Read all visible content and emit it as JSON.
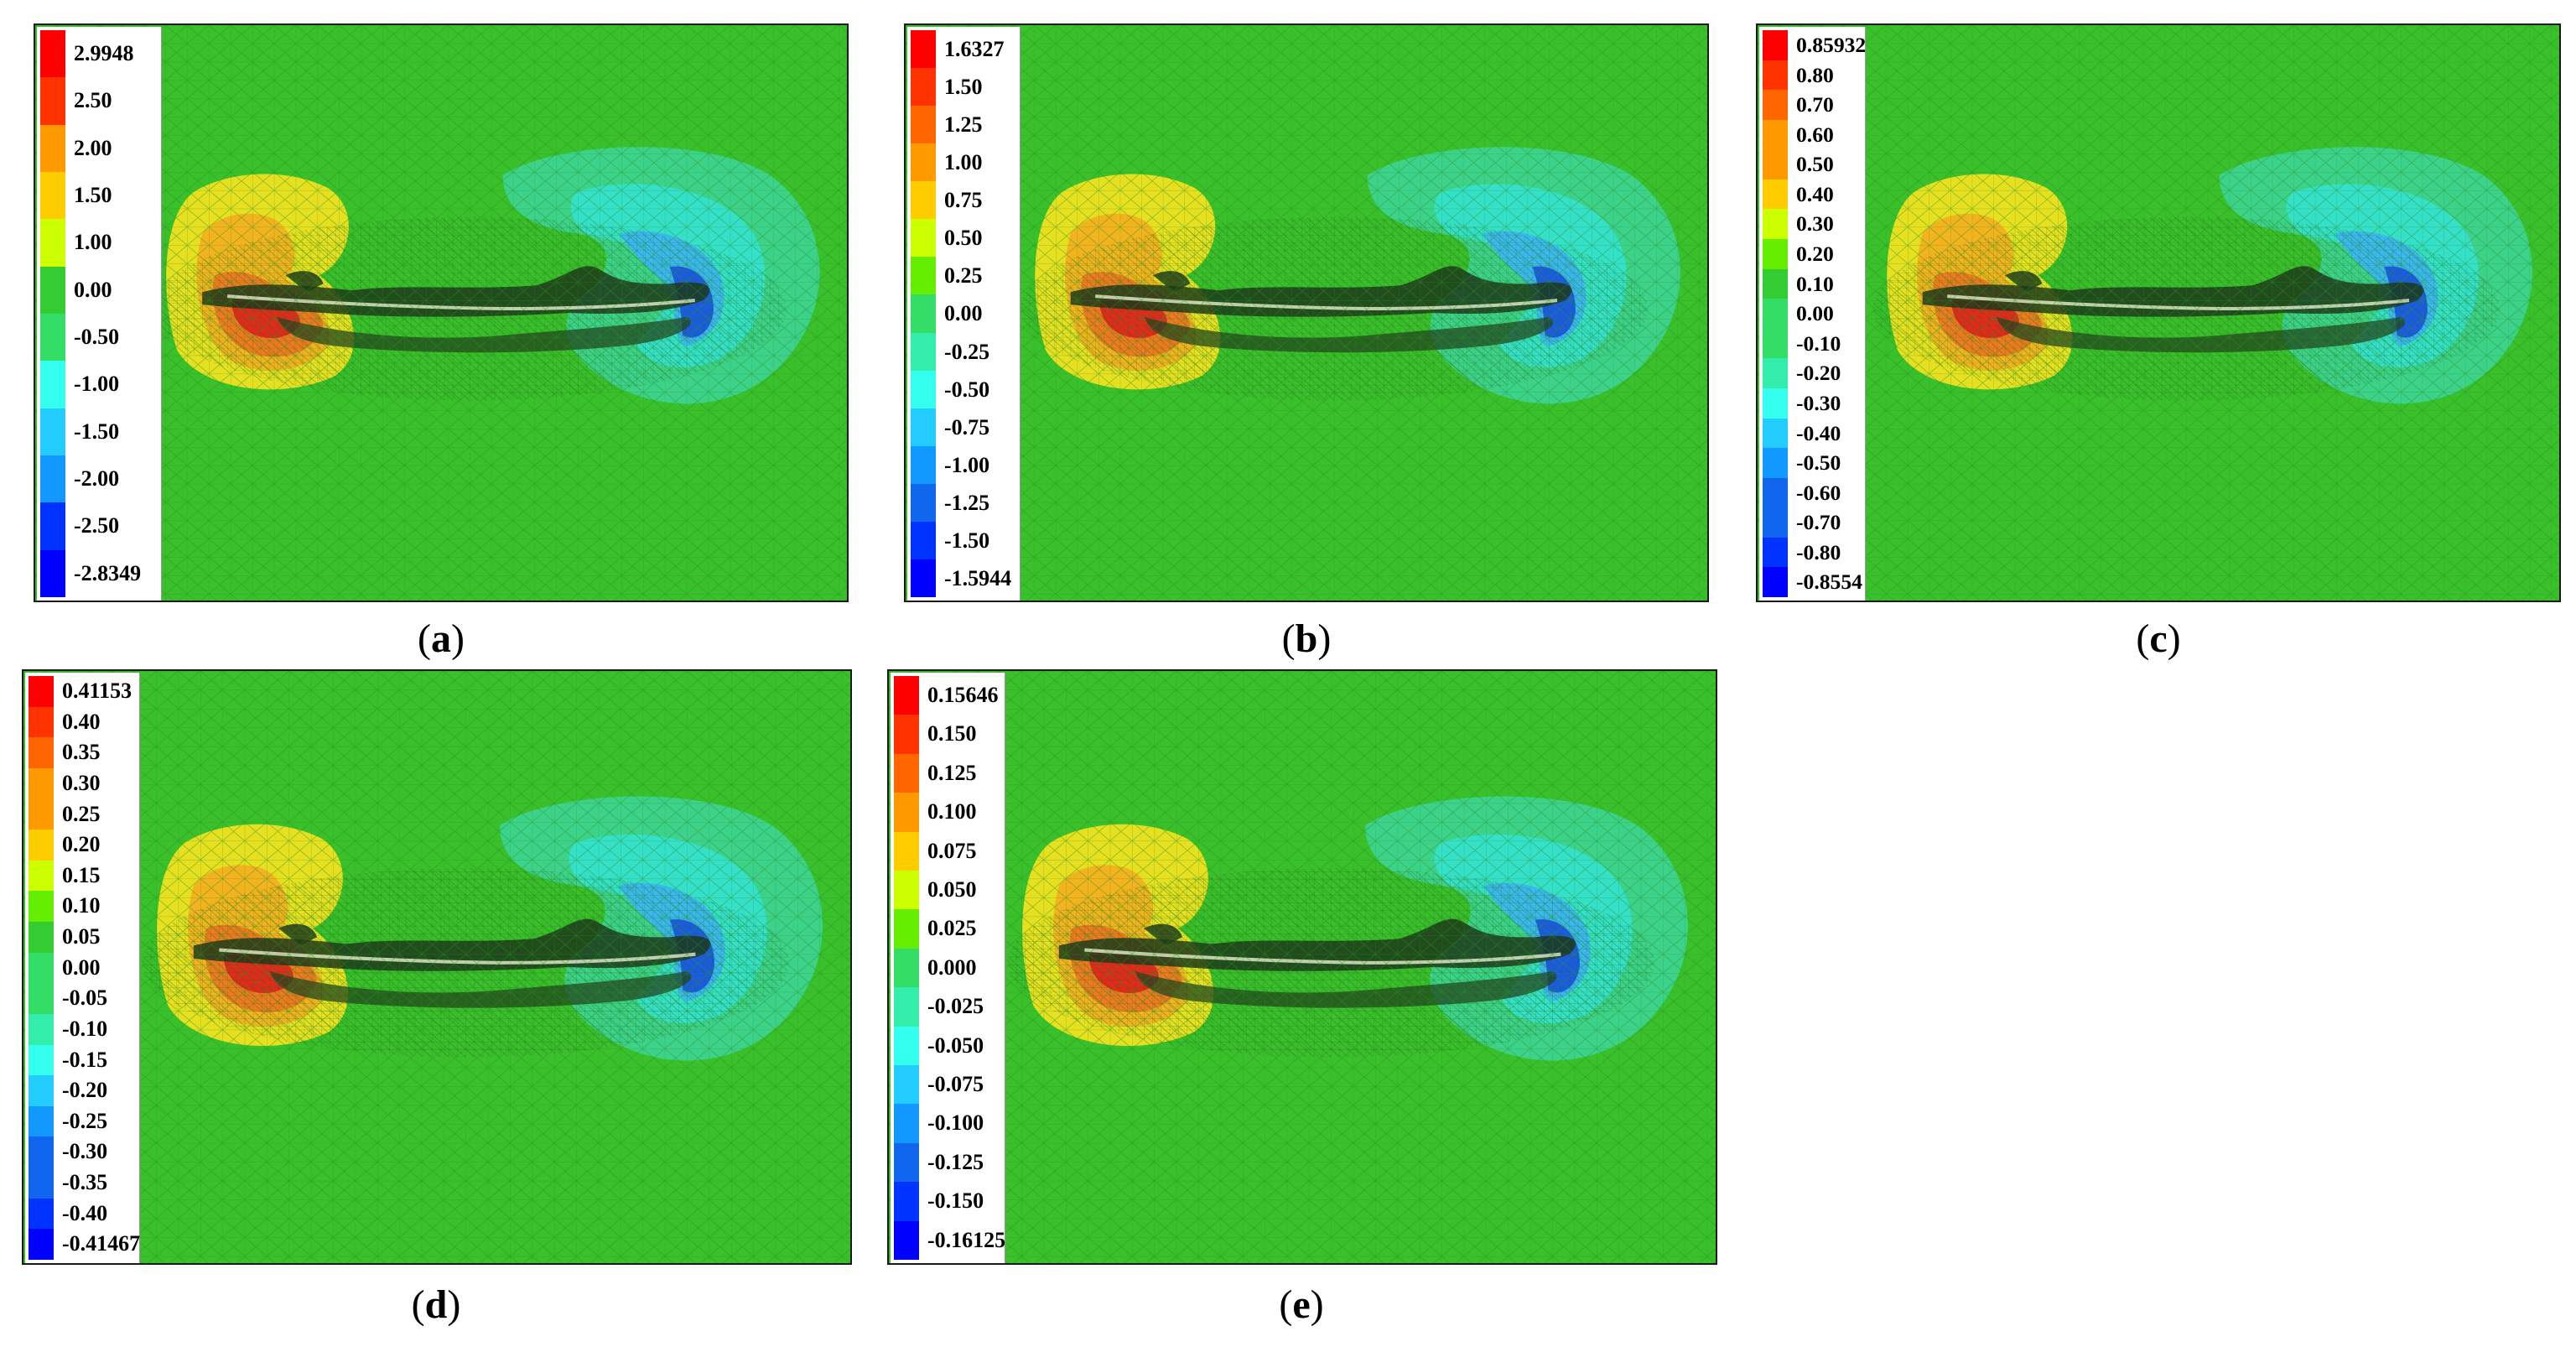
{
  "colors": {
    "field_green": "#39c02a",
    "legend_scale": [
      "#ff0000",
      "#ff3300",
      "#ff6600",
      "#ff9900",
      "#ffcc00",
      "#ccff00",
      "#66ee00",
      "#33cc33",
      "#33dd66",
      "#33eeaa",
      "#33ffee",
      "#22ccff",
      "#1199ff",
      "#1166ee",
      "#0033ff",
      "#0000ff"
    ]
  },
  "panels": [
    {
      "id": "a",
      "caption_open": "(",
      "caption_letter": "a",
      "caption_close": ")",
      "legend_labels": [
        "2.9948",
        "2.50",
        "2.00",
        "1.50",
        "1.00",
        "0.00",
        "-0.50",
        "-1.00",
        "-1.50",
        "-2.00",
        "-2.50",
        "-2.8349"
      ]
    },
    {
      "id": "b",
      "caption_open": "(",
      "caption_letter": "b",
      "caption_close": ")",
      "legend_labels": [
        "1.6327",
        "1.50",
        "1.25",
        "1.00",
        "0.75",
        "0.50",
        "0.25",
        "0.00",
        "-0.25",
        "-0.50",
        "-0.75",
        "-1.00",
        "-1.25",
        "-1.50",
        "-1.5944"
      ]
    },
    {
      "id": "c",
      "caption_open": "(",
      "caption_letter": "c",
      "caption_close": ")",
      "legend_labels": [
        "0.85932",
        "0.80",
        "0.70",
        "0.60",
        "0.50",
        "0.40",
        "0.30",
        "0.20",
        "0.10",
        "0.00",
        "-0.10",
        "-0.20",
        "-0.30",
        "-0.40",
        "-0.50",
        "-0.60",
        "-0.70",
        "-0.80",
        "-0.8554"
      ]
    },
    {
      "id": "d",
      "caption_open": "(",
      "caption_letter": "d",
      "caption_close": ")",
      "legend_labels": [
        "0.41153",
        "0.40",
        "0.35",
        "0.30",
        "0.25",
        "0.20",
        "0.15",
        "0.10",
        "0.05",
        "0.00",
        "-0.05",
        "-0.10",
        "-0.15",
        "-0.20",
        "-0.25",
        "-0.30",
        "-0.35",
        "-0.40",
        "-0.41467"
      ]
    },
    {
      "id": "e",
      "caption_open": "(",
      "caption_letter": "e",
      "caption_close": ")",
      "legend_labels": [
        "0.15646",
        "0.150",
        "0.125",
        "0.100",
        "0.075",
        "0.050",
        "0.025",
        "0.000",
        "-0.025",
        "-0.050",
        "-0.075",
        "-0.100",
        "-0.125",
        "-0.150",
        "-0.16125"
      ]
    }
  ]
}
